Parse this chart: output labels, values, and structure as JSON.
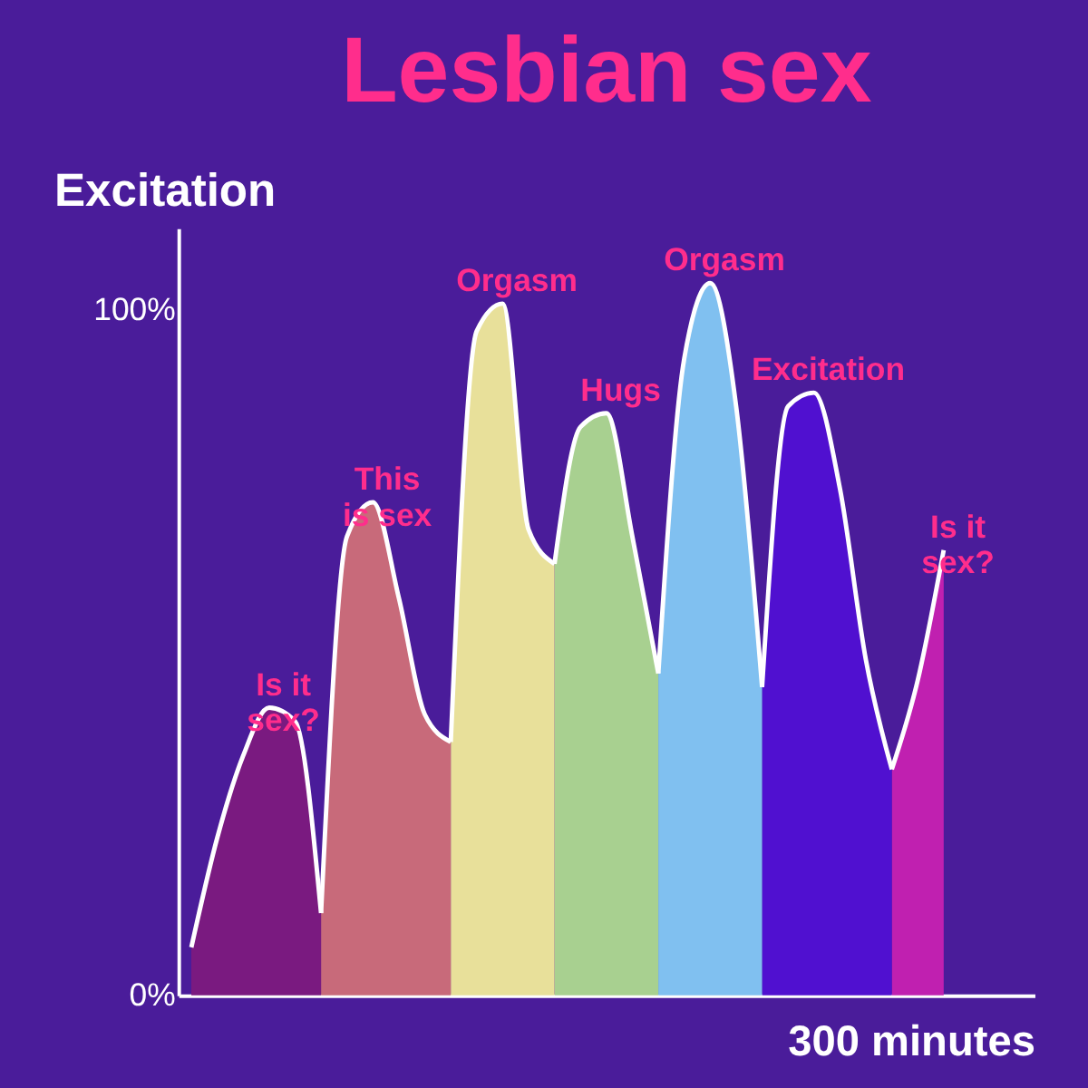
{
  "chart_data": {
    "type": "area",
    "title": "Lesbian sex",
    "xlabel": "300 minutes",
    "ylabel": "Excitation",
    "categories": [
      null,
      null,
      null,
      null,
      null,
      null,
      null,
      null,
      null,
      null,
      null,
      null,
      null,
      null,
      null,
      null,
      null,
      null,
      null,
      null,
      null,
      null,
      null,
      null,
      null,
      null,
      null,
      null,
      null,
      null,
      null,
      null,
      null
    ],
    "ylim": [
      0,
      112
    ],
    "yticks": [
      {
        "value": 0,
        "label": "0%"
      },
      {
        "value": 100,
        "label": "100%"
      }
    ],
    "tick_labels": "y",
    "grid": false,
    "series": [
      {
        "name": "Is it\nsex?",
        "color": "#7a1a80",
        "values": [
          7,
          23,
          35,
          42,
          40,
          12,
          null,
          null,
          null,
          null,
          null,
          null,
          null,
          null,
          null,
          null,
          null,
          null,
          null,
          null,
          null,
          null,
          null,
          null,
          null,
          null,
          null,
          null,
          null,
          null,
          null,
          null,
          null
        ]
      },
      {
        "name": "This\nis sex",
        "color": "#c86a7a",
        "values": [
          null,
          null,
          null,
          null,
          null,
          12,
          67,
          72,
          58,
          41,
          37,
          null,
          null,
          null,
          null,
          null,
          null,
          null,
          null,
          null,
          null,
          null,
          null,
          null,
          null,
          null,
          null,
          null,
          null,
          null,
          null,
          null,
          null
        ]
      },
      {
        "name": "Orgasm",
        "color": "#e8e09a",
        "values": [
          null,
          null,
          null,
          null,
          null,
          null,
          null,
          null,
          null,
          null,
          37,
          97,
          101,
          68,
          63,
          null,
          null,
          null,
          null,
          null,
          null,
          null,
          null,
          null,
          null,
          null,
          null,
          null,
          null,
          null,
          null,
          null,
          null
        ]
      },
      {
        "name": "Hugs",
        "color": "#a8d090",
        "values": [
          null,
          null,
          null,
          null,
          null,
          null,
          null,
          null,
          null,
          null,
          null,
          null,
          null,
          null,
          63,
          83,
          85,
          67,
          47,
          null,
          null,
          null,
          null,
          null,
          null,
          null,
          null,
          null,
          null,
          null,
          null,
          null,
          null
        ]
      },
      {
        "name": "Orgasm",
        "color": "#80c0f0",
        "values": [
          null,
          null,
          null,
          null,
          null,
          null,
          null,
          null,
          null,
          null,
          null,
          null,
          null,
          null,
          null,
          null,
          null,
          null,
          47,
          93,
          104,
          86,
          45,
          null,
          null,
          null,
          null,
          null,
          null,
          null,
          null,
          null,
          null
        ]
      },
      {
        "name": "Excitation",
        "color": "#5010d0",
        "values": [
          null,
          null,
          null,
          null,
          null,
          null,
          null,
          null,
          null,
          null,
          null,
          null,
          null,
          null,
          null,
          null,
          null,
          null,
          null,
          null,
          null,
          null,
          45,
          86,
          88,
          74,
          49,
          33,
          null,
          null,
          null,
          null,
          null
        ]
      },
      {
        "name": "Is it\nsex?",
        "color": "#c020b0",
        "values": [
          null,
          null,
          null,
          null,
          null,
          null,
          null,
          null,
          null,
          null,
          null,
          null,
          null,
          null,
          null,
          null,
          null,
          null,
          null,
          null,
          null,
          null,
          null,
          null,
          null,
          null,
          null,
          33,
          46,
          65,
          null,
          null,
          null
        ]
      }
    ]
  }
}
